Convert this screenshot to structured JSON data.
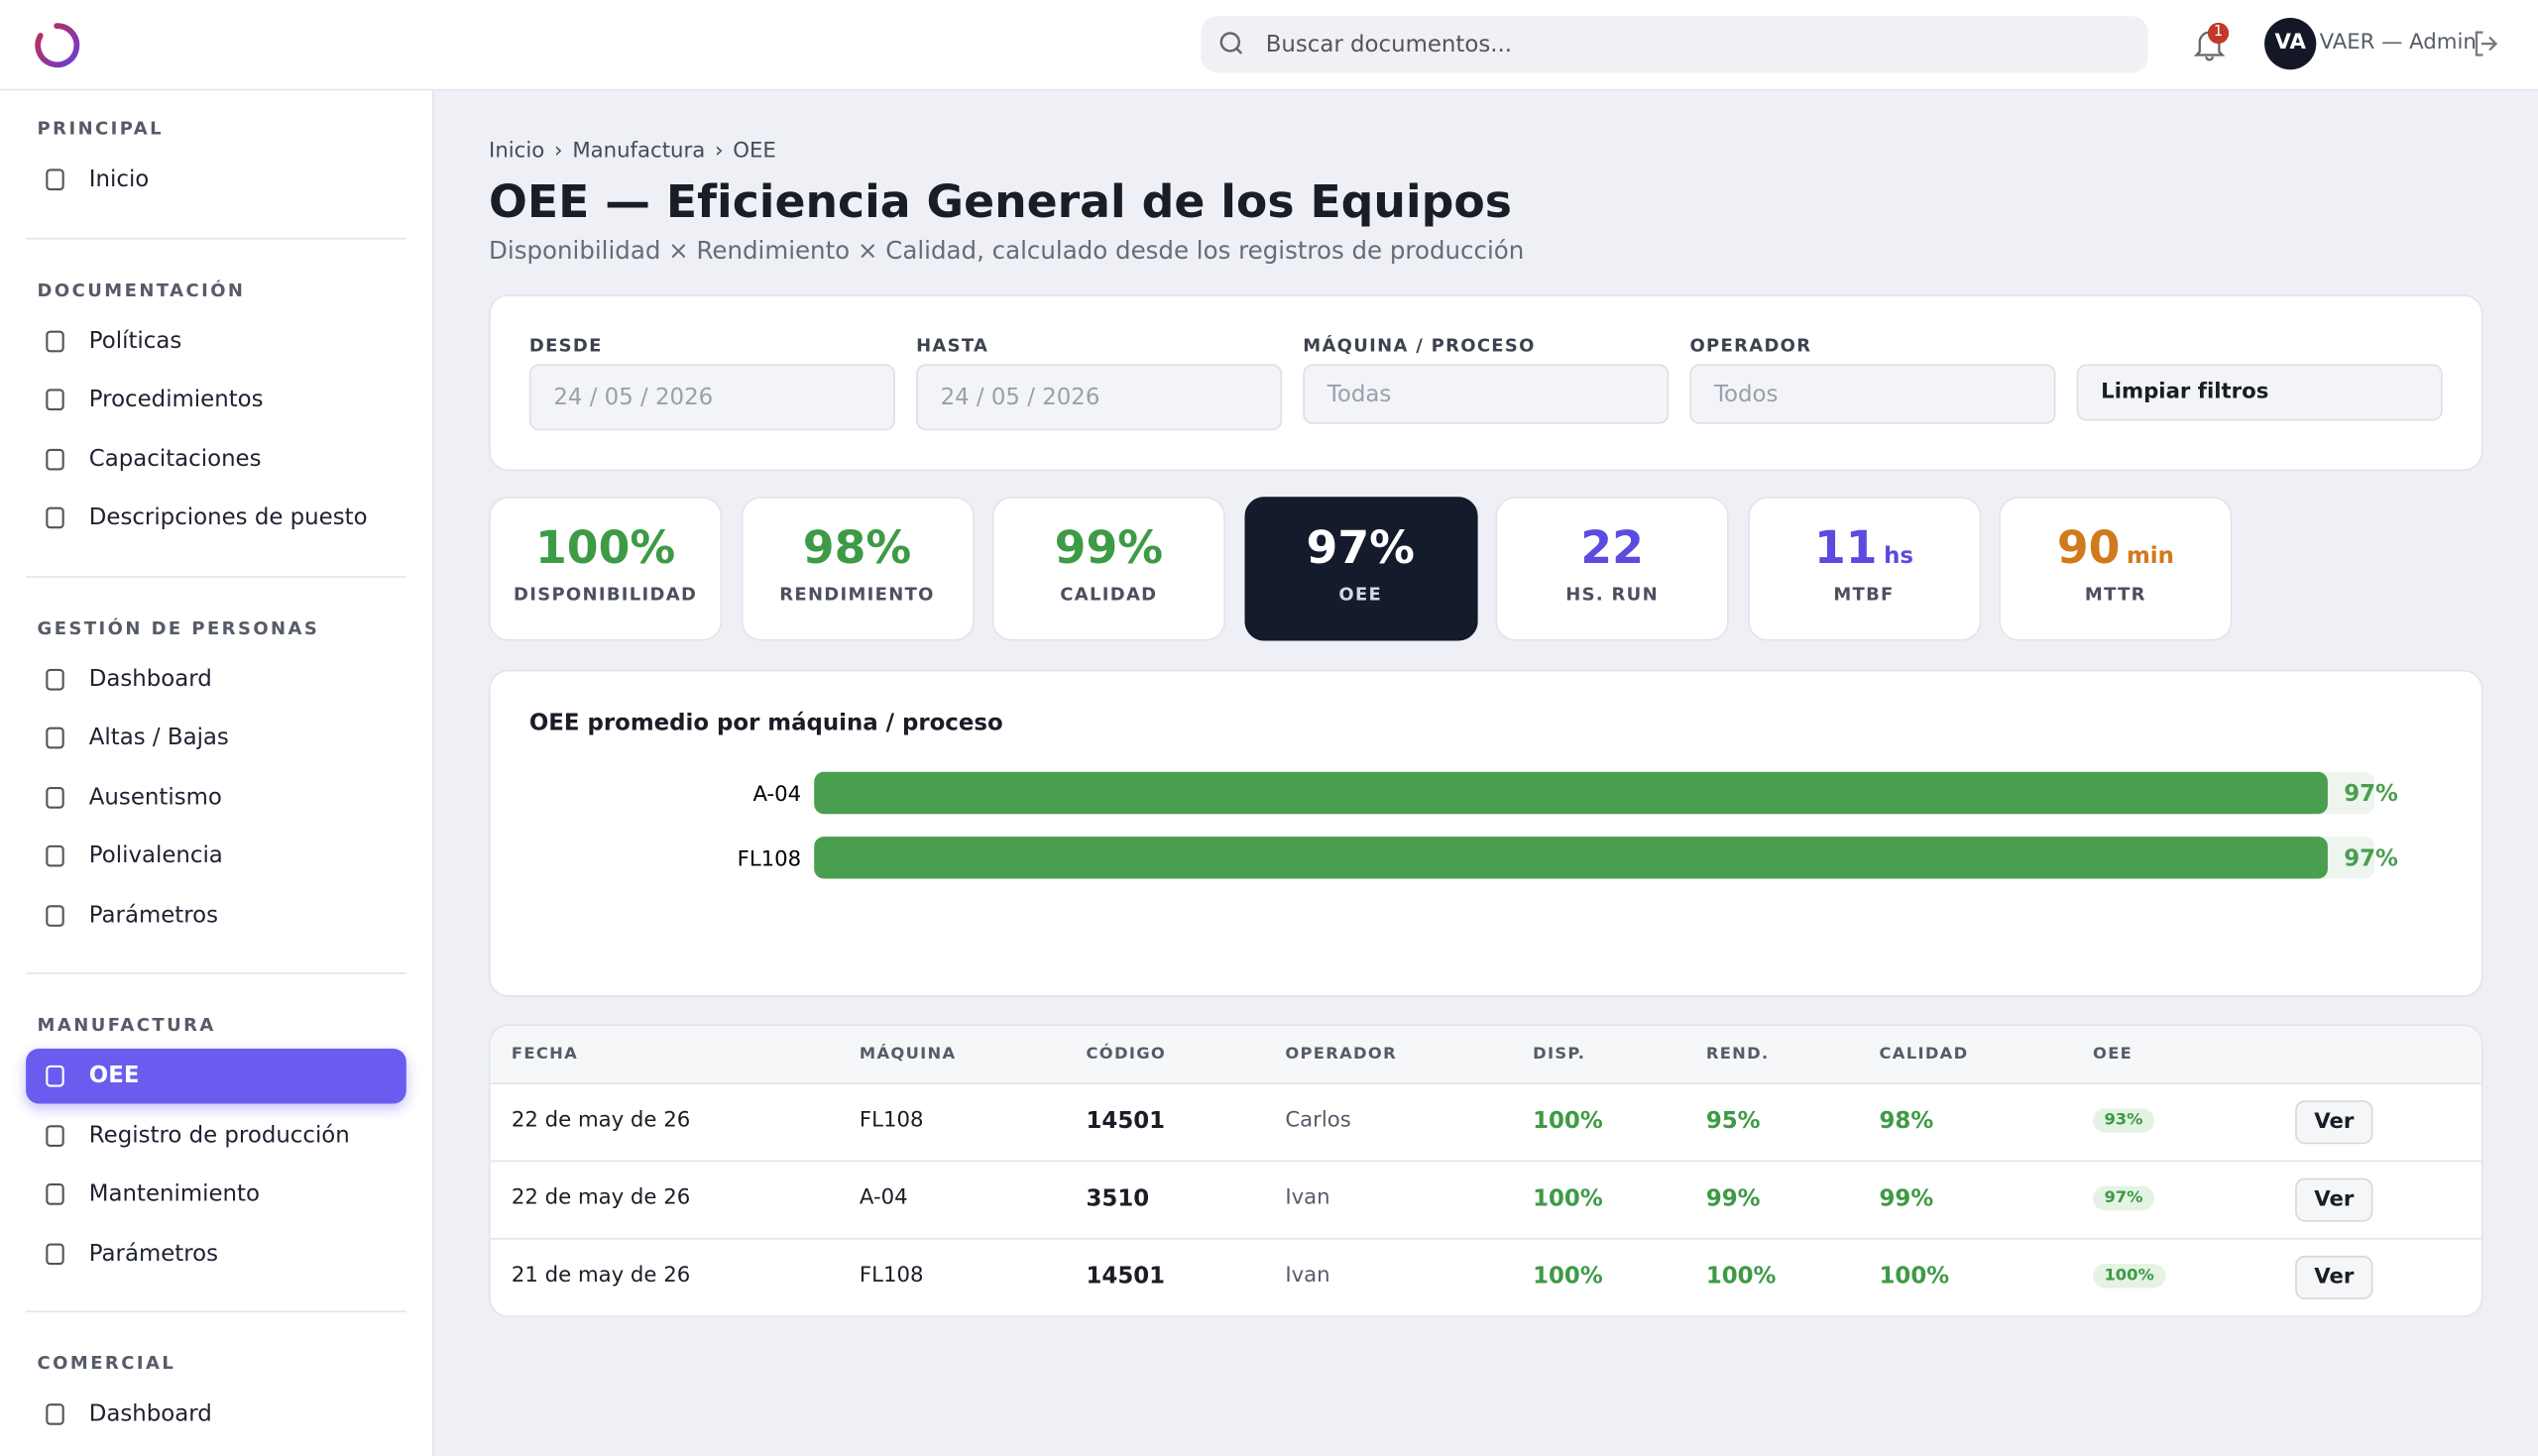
{
  "header": {
    "search_placeholder": "Buscar documentos...",
    "notifications": "1",
    "avatar": "VA",
    "user": "VAER — Admin"
  },
  "sidebar": {
    "sections": [
      {
        "title": "PRINCIPAL",
        "items": [
          "Inicio"
        ]
      },
      {
        "title": "DOCUMENTACIÓN",
        "items": [
          "Políticas",
          "Procedimientos",
          "Capacitaciones",
          "Descripciones de puesto"
        ]
      },
      {
        "title": "GESTIÓN DE PERSONAS",
        "items": [
          "Dashboard",
          "Altas / Bajas",
          "Ausentismo",
          "Polivalencia",
          "Parámetros"
        ]
      },
      {
        "title": "MANUFACTURA",
        "items": [
          "OEE",
          "Registro de producción",
          "Mantenimiento",
          "Parámetros"
        ]
      },
      {
        "title": "COMERCIAL",
        "items": [
          "Dashboard"
        ]
      }
    ]
  },
  "breadcrumb": [
    "Inicio",
    "Manufactura",
    "OEE"
  ],
  "page": {
    "title": "OEE — Eficiencia General de los Equipos",
    "subtitle": "Disponibilidad × Rendimiento × Calidad, calculado desde los registros de producción"
  },
  "filters": [
    {
      "label": "DESDE",
      "value": "24 / 05 / 2026"
    },
    {
      "label": "HASTA",
      "value": "24 / 05 / 2026"
    },
    {
      "label": "MÁQUINA / PROCESO",
      "value": "Todas"
    },
    {
      "label": "OPERADOR",
      "value": "Todos"
    }
  ],
  "clear_button": "Limpiar filtros",
  "kpis": [
    {
      "value": "100%",
      "label": "DISPONIBILIDAD"
    },
    {
      "value": "98%",
      "label": "RENDIMIENTO"
    },
    {
      "value": "99%",
      "label": "CALIDAD"
    },
    {
      "value": "97%",
      "label": "OEE"
    },
    {
      "value": "22",
      "label": "HS. RUN"
    },
    {
      "value": "11",
      "unit": "hs",
      "label": "MTBF"
    },
    {
      "value": "90",
      "unit": "min",
      "label": "MTTR"
    }
  ],
  "chart_data": {
    "type": "bar",
    "title": "OEE promedio por máquina / proceso",
    "categories": [
      "A-04",
      "FL108"
    ],
    "values": [
      97,
      97
    ],
    "value_labels": [
      "97%",
      "97%"
    ],
    "xlim": [
      0,
      100
    ],
    "color": "#4a9e4f"
  },
  "table": {
    "columns": [
      "FECHA",
      "MÁQUINA",
      "CÓDIGO",
      "OPERADOR",
      "DISP.",
      "REND.",
      "CALIDAD",
      "OEE"
    ],
    "rows": [
      [
        "22 de may de 26",
        "FL108",
        "14501",
        "Carlos",
        "100%",
        "95%",
        "98%",
        "93%",
        "Ver"
      ],
      [
        "22 de may de 26",
        "A-04",
        "3510",
        "Ivan",
        "100%",
        "99%",
        "99%",
        "97%",
        "Ver"
      ],
      [
        "21 de may de 26",
        "FL108",
        "14501",
        "Ivan",
        "100%",
        "100%",
        "100%",
        "100%",
        "Ver"
      ]
    ]
  }
}
